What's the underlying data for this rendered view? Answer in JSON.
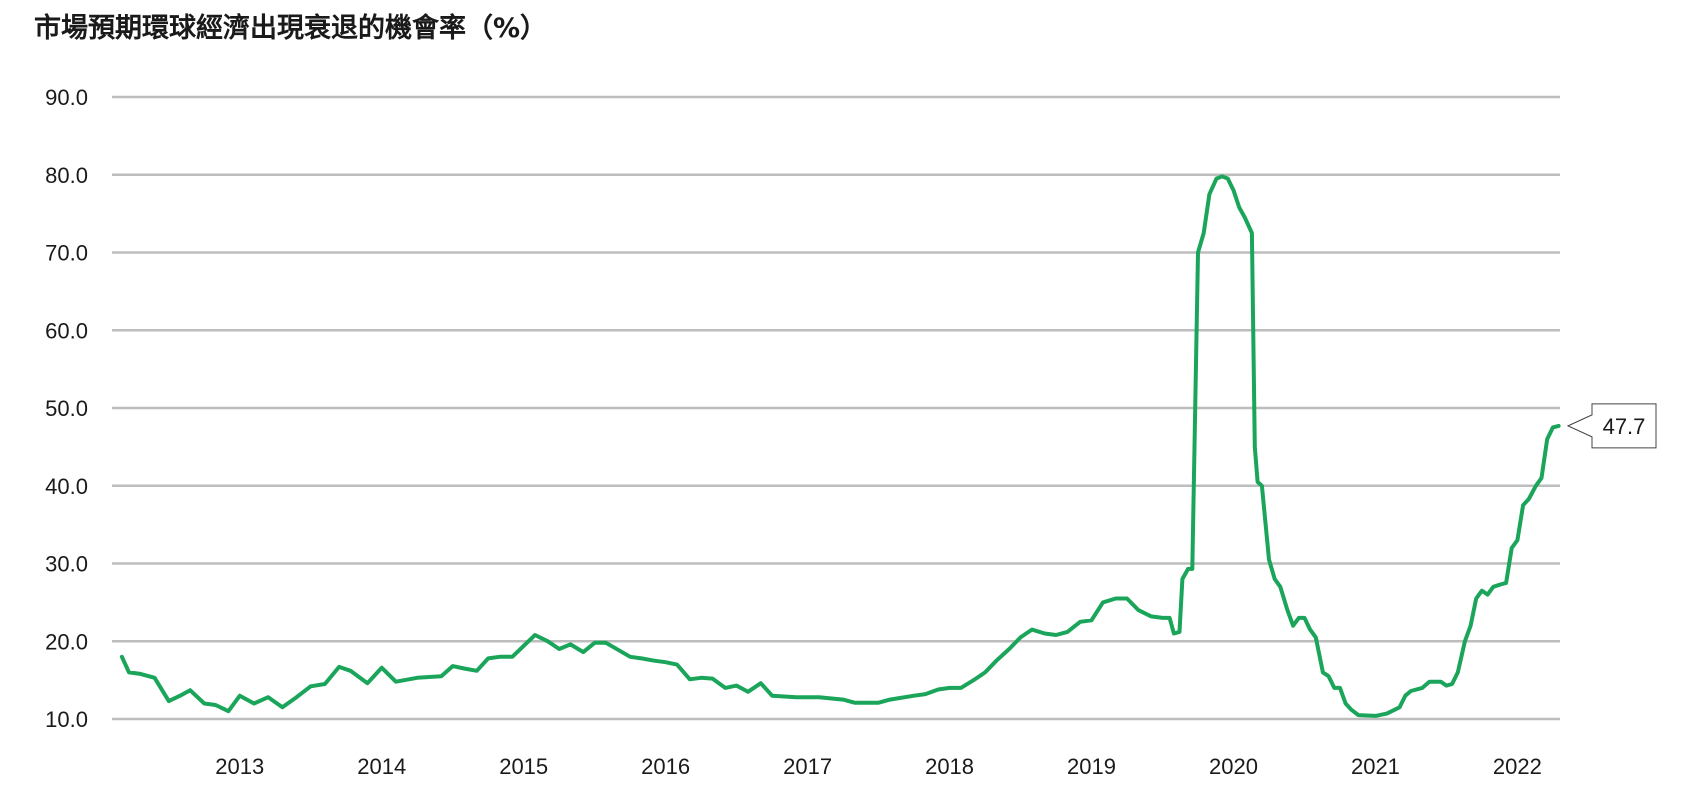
{
  "chart_data": {
    "type": "line",
    "title": "市場預期環球經濟出現衰退的機會率（%）",
    "xlabel": "",
    "ylabel": "",
    "ylim": [
      10,
      90
    ],
    "y_ticks": [
      "10.0",
      "20.0",
      "30.0",
      "40.0",
      "50.0",
      "60.0",
      "70.0",
      "80.0",
      "90.0"
    ],
    "x_tick_labels": [
      "2013",
      "2014",
      "2015",
      "2016",
      "2017",
      "2018",
      "2019",
      "2020",
      "2021",
      "2022"
    ],
    "x_range": [
      2012.6,
      2022.8
    ],
    "grid": "horizontal",
    "line_color": "#1aa55a",
    "grid_color": "#bdbdbd",
    "last_value_label": "47.7",
    "series": [
      {
        "points": [
          [
            2012.67,
            18.0
          ],
          [
            2012.72,
            16.0
          ],
          [
            2012.8,
            15.8
          ],
          [
            2012.9,
            15.3
          ],
          [
            2013.0,
            12.3
          ],
          [
            2013.08,
            13.0
          ],
          [
            2013.15,
            13.7
          ],
          [
            2013.25,
            12.0
          ],
          [
            2013.33,
            11.8
          ],
          [
            2013.42,
            11.0
          ],
          [
            2013.5,
            13.0
          ],
          [
            2013.6,
            12.0
          ],
          [
            2013.7,
            12.8
          ],
          [
            2013.8,
            11.5
          ],
          [
            2013.9,
            12.8
          ],
          [
            2014.0,
            14.2
          ],
          [
            2014.1,
            14.5
          ],
          [
            2014.2,
            16.7
          ],
          [
            2014.28,
            16.2
          ],
          [
            2014.4,
            14.6
          ],
          [
            2014.5,
            16.6
          ],
          [
            2014.6,
            14.8
          ],
          [
            2014.75,
            15.3
          ],
          [
            2014.92,
            15.5
          ],
          [
            2015.0,
            16.8
          ],
          [
            2015.08,
            16.5
          ],
          [
            2015.17,
            16.2
          ],
          [
            2015.25,
            17.8
          ],
          [
            2015.33,
            18.0
          ],
          [
            2015.42,
            18.0
          ],
          [
            2015.58,
            20.8
          ],
          [
            2015.67,
            20.0
          ],
          [
            2015.75,
            19.0
          ],
          [
            2015.83,
            19.6
          ],
          [
            2015.92,
            18.6
          ],
          [
            2016.0,
            19.8
          ],
          [
            2016.08,
            19.8
          ],
          [
            2016.25,
            18.0
          ],
          [
            2016.33,
            17.8
          ],
          [
            2016.42,
            17.5
          ],
          [
            2016.5,
            17.3
          ],
          [
            2016.58,
            17.0
          ],
          [
            2016.67,
            15.1
          ],
          [
            2016.75,
            15.3
          ],
          [
            2016.83,
            15.2
          ],
          [
            2016.92,
            14.0
          ],
          [
            2017.0,
            14.3
          ],
          [
            2017.08,
            13.5
          ],
          [
            2017.17,
            14.6
          ],
          [
            2017.25,
            13.0
          ],
          [
            2017.42,
            12.8
          ],
          [
            2017.58,
            12.8
          ],
          [
            2017.75,
            12.5
          ],
          [
            2017.83,
            12.1
          ],
          [
            2018.0,
            12.1
          ],
          [
            2018.08,
            12.5
          ],
          [
            2018.25,
            13.0
          ],
          [
            2018.33,
            13.2
          ],
          [
            2018.42,
            13.8
          ],
          [
            2018.5,
            14.0
          ],
          [
            2018.58,
            14.0
          ],
          [
            2018.67,
            15.0
          ],
          [
            2018.75,
            16.0
          ],
          [
            2018.83,
            17.5
          ],
          [
            2018.92,
            19.0
          ],
          [
            2019.0,
            20.5
          ],
          [
            2019.08,
            21.5
          ],
          [
            2019.17,
            21.0
          ],
          [
            2019.25,
            20.8
          ],
          [
            2019.33,
            21.2
          ],
          [
            2019.42,
            22.5
          ],
          [
            2019.5,
            22.7
          ],
          [
            2019.58,
            25.0
          ],
          [
            2019.67,
            25.5
          ],
          [
            2019.75,
            25.5
          ],
          [
            2019.83,
            24.0
          ],
          [
            2019.92,
            23.2
          ],
          [
            2020.0,
            23.0
          ],
          [
            2020.05,
            23.0
          ],
          [
            2020.08,
            21.0
          ],
          [
            2020.12,
            21.2
          ],
          [
            2020.14,
            28.0
          ],
          [
            2020.18,
            29.3
          ],
          [
            2020.21,
            29.3
          ],
          [
            2020.23,
            50.0
          ],
          [
            2020.25,
            70.0
          ],
          [
            2020.29,
            72.5
          ],
          [
            2020.33,
            77.5
          ],
          [
            2020.38,
            79.5
          ],
          [
            2020.42,
            79.8
          ],
          [
            2020.46,
            79.5
          ],
          [
            2020.5,
            78.0
          ],
          [
            2020.54,
            75.8
          ],
          [
            2020.58,
            74.5
          ],
          [
            2020.63,
            72.5
          ],
          [
            2020.65,
            45.0
          ],
          [
            2020.67,
            40.5
          ],
          [
            2020.7,
            40.0
          ],
          [
            2020.75,
            30.5
          ],
          [
            2020.79,
            28.0
          ],
          [
            2020.83,
            27.0
          ],
          [
            2020.88,
            24.0
          ],
          [
            2020.92,
            22.0
          ],
          [
            2020.96,
            23.0
          ],
          [
            2021.0,
            23.0
          ],
          [
            2021.04,
            21.5
          ],
          [
            2021.08,
            20.5
          ],
          [
            2021.13,
            16.0
          ],
          [
            2021.17,
            15.5
          ],
          [
            2021.21,
            14.0
          ],
          [
            2021.25,
            14.0
          ],
          [
            2021.29,
            12.0
          ],
          [
            2021.33,
            11.2
          ],
          [
            2021.38,
            10.5
          ],
          [
            2021.5,
            10.4
          ],
          [
            2021.58,
            10.7
          ],
          [
            2021.67,
            11.5
          ],
          [
            2021.71,
            13.0
          ],
          [
            2021.75,
            13.6
          ],
          [
            2021.83,
            14.0
          ],
          [
            2021.88,
            14.8
          ],
          [
            2021.96,
            14.8
          ],
          [
            2022.0,
            14.3
          ],
          [
            2022.04,
            14.5
          ],
          [
            2022.08,
            16.0
          ],
          [
            2022.13,
            20.0
          ],
          [
            2022.17,
            22.0
          ],
          [
            2022.21,
            25.5
          ],
          [
            2022.25,
            26.5
          ],
          [
            2022.29,
            26.0
          ],
          [
            2022.33,
            27.0
          ],
          [
            2022.38,
            27.3
          ],
          [
            2022.42,
            27.5
          ],
          [
            2022.46,
            32.0
          ],
          [
            2022.5,
            33.0
          ],
          [
            2022.54,
            37.5
          ],
          [
            2022.58,
            38.3
          ],
          [
            2022.63,
            40.0
          ],
          [
            2022.67,
            41.0
          ],
          [
            2022.71,
            46.0
          ],
          [
            2022.75,
            47.5
          ],
          [
            2022.79,
            47.7
          ]
        ]
      }
    ]
  }
}
